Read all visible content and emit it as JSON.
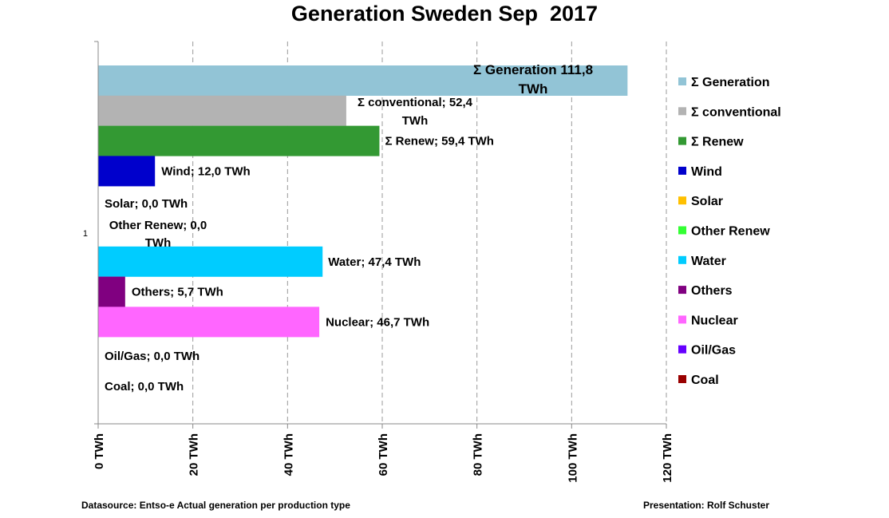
{
  "chart_data": {
    "type": "bar",
    "orientation": "horizontal",
    "title": "Generation Sweden Sep  2017",
    "y_category_label": "1",
    "categories": [
      "Σ Generation",
      "Σ conventional",
      "Σ Renew",
      "Wind",
      "Solar",
      "Other Renew",
      "Water",
      "Others",
      "Nuclear",
      "Oil/Gas",
      "Coal"
    ],
    "values": [
      111.8,
      52.4,
      59.4,
      12.0,
      0.0,
      0.0,
      47.4,
      5.7,
      46.7,
      0.0,
      0.0
    ],
    "data_labels": [
      "Σ Generation 111,8 TWh",
      "Σ conventional; 52,4 TWh",
      "Σ Renew; 59,4 TWh",
      "Wind; 12,0 TWh",
      "Solar; 0,0 TWh",
      "Other Renew; 0,0 TWh",
      "Water; 47,4 TWh",
      "Others; 5,7 TWh",
      "Nuclear; 46,7 TWh",
      "Oil/Gas; 0,0 TWh",
      "Coal; 0,0 TWh"
    ],
    "colors": [
      "#92C4D6",
      "#B3B3B3",
      "#339933",
      "#0000CC",
      "#FFC000",
      "#33FF33",
      "#00CCFF",
      "#800080",
      "#FF66FF",
      "#6600FF",
      "#990000"
    ],
    "xlim": [
      0,
      120
    ],
    "x_ticks": [
      0,
      20,
      40,
      60,
      80,
      100,
      120
    ],
    "x_tick_labels": [
      "0 TWh",
      "20 TWh",
      "40 TWh",
      "60 TWh",
      "80 TWh",
      "100 TWh",
      "120 TWh"
    ],
    "grid": "vertical dashed",
    "legend_position": "right",
    "legend": [
      "Σ Generation",
      "Σ conventional",
      "Σ Renew",
      "Wind",
      "Solar",
      "Other Renew",
      "Water",
      "Others",
      "Nuclear",
      "Oil/Gas",
      "Coal"
    ]
  },
  "footer": {
    "source": "Datasource: Entso-e  Actual generation per production type",
    "credit": "Presentation: Rolf Schuster"
  }
}
